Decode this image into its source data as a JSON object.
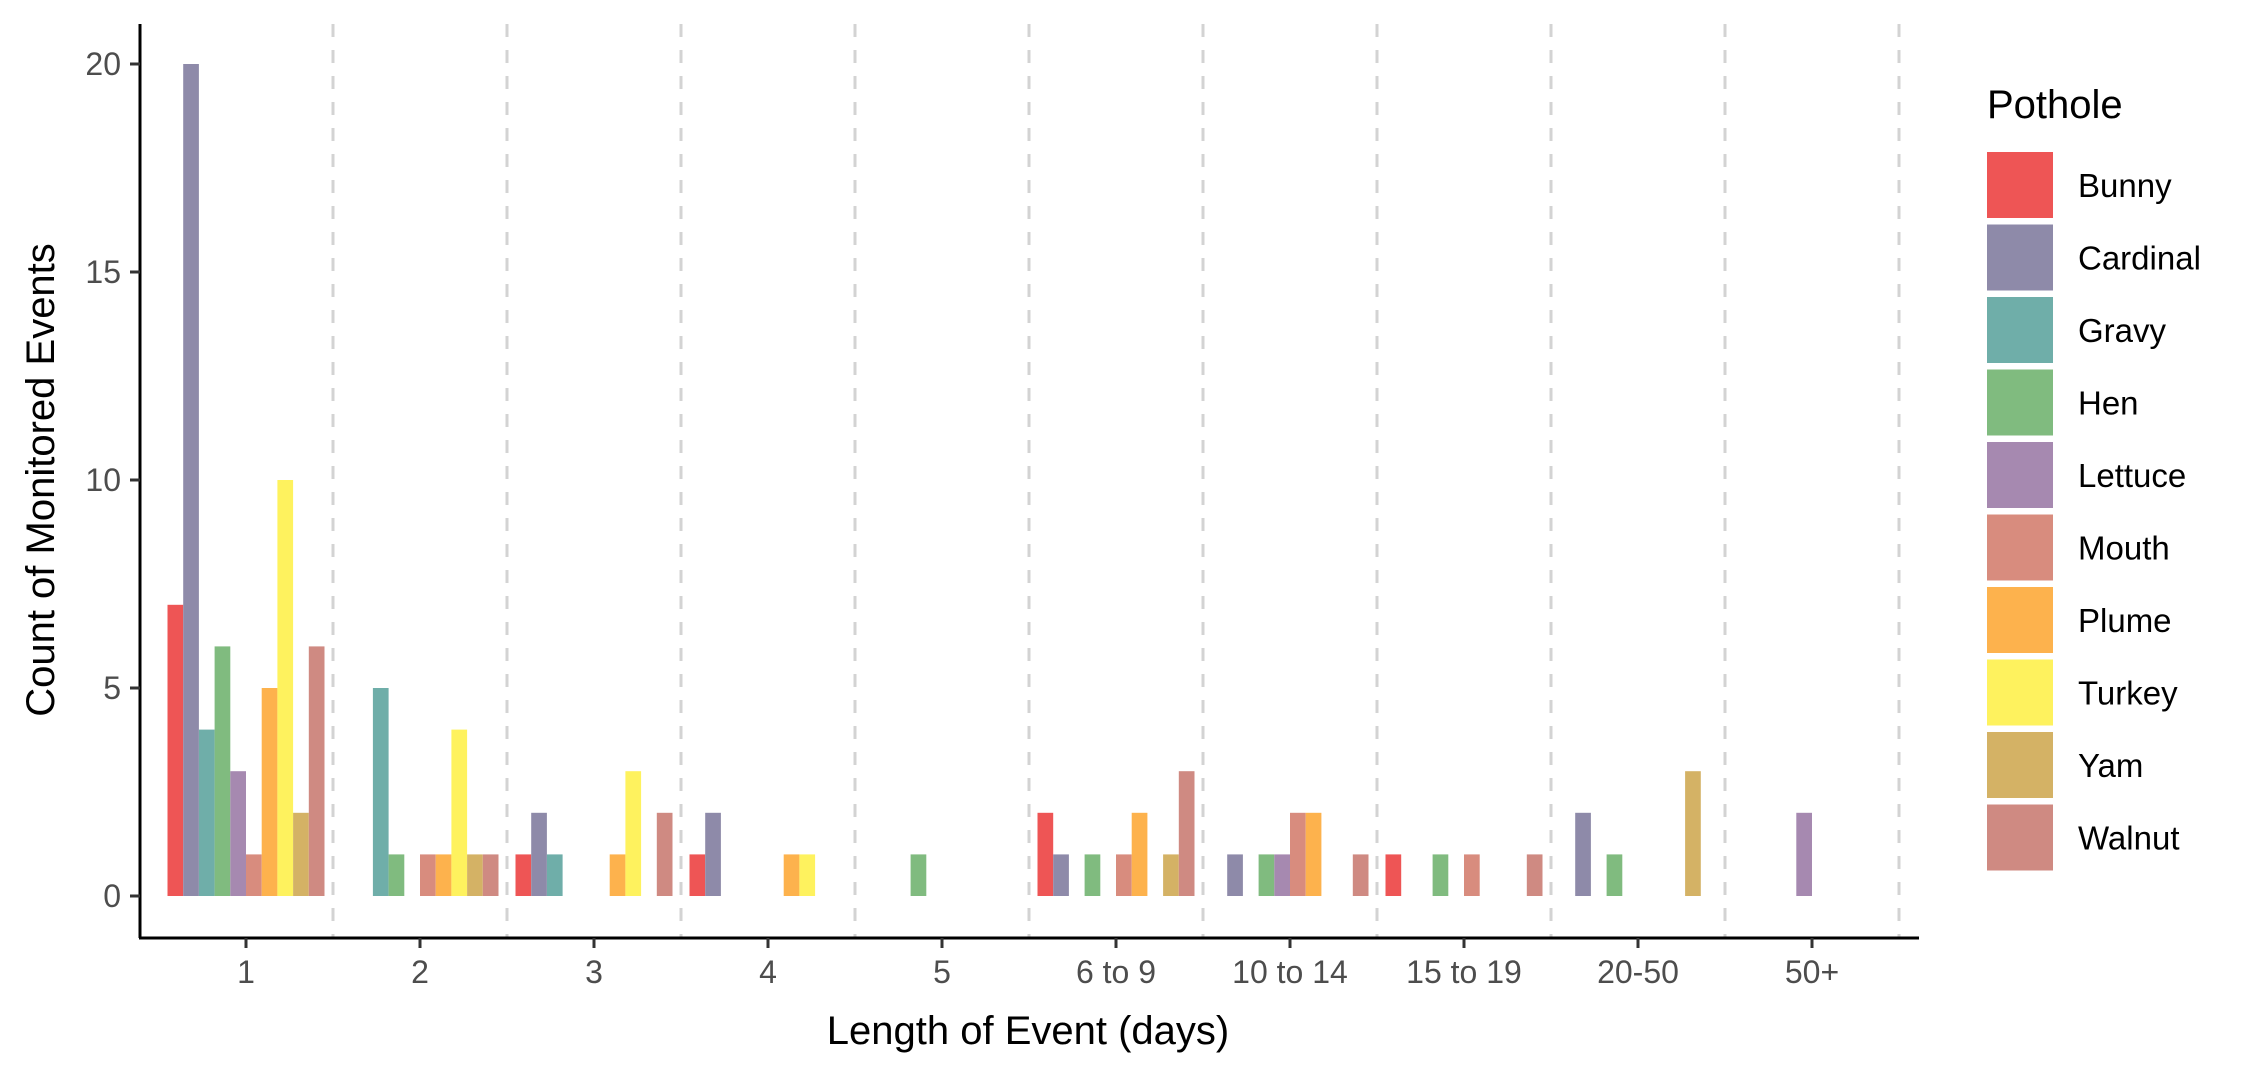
{
  "chart_data": {
    "type": "bar",
    "title": "",
    "xlabel": "Length of Event (days)",
    "ylabel": "Count of Monitored Events",
    "ylim": [
      0,
      21
    ],
    "yticks": [
      0,
      5,
      10,
      15,
      20
    ],
    "grid": "vertical dashed separators between categories",
    "legend_title": "Pothole",
    "legend_position": "right",
    "categories": [
      "1",
      "2",
      "3",
      "4",
      "5",
      "6 to 9",
      "10 to 14",
      "15 to 19",
      "20-50",
      "50+"
    ],
    "series": [
      {
        "name": "Bunny",
        "color": "#EE5555",
        "values": [
          7,
          0,
          1,
          1,
          0,
          2,
          0,
          1,
          0,
          0
        ]
      },
      {
        "name": "Cardinal",
        "color": "#8E8AA9",
        "values": [
          20,
          0,
          2,
          2,
          0,
          1,
          1,
          0,
          2,
          0
        ]
      },
      {
        "name": "Gravy",
        "color": "#6FAEA9",
        "values": [
          4,
          5,
          1,
          0,
          0,
          0,
          0,
          0,
          0,
          0
        ]
      },
      {
        "name": "Hen",
        "color": "#80BB7F",
        "values": [
          6,
          1,
          0,
          0,
          1,
          1,
          1,
          1,
          1,
          0
        ]
      },
      {
        "name": "Lettuce",
        "color": "#A689B0",
        "values": [
          3,
          0,
          0,
          0,
          0,
          0,
          1,
          0,
          0,
          2
        ]
      },
      {
        "name": "Mouth",
        "color": "#D88C7E",
        "values": [
          1,
          1,
          0,
          0,
          0,
          1,
          2,
          1,
          0,
          0
        ]
      },
      {
        "name": "Plume",
        "color": "#FDB24D",
        "values": [
          5,
          1,
          1,
          1,
          0,
          2,
          2,
          0,
          0,
          0
        ]
      },
      {
        "name": "Turkey",
        "color": "#FEF25E",
        "values": [
          10,
          4,
          3,
          1,
          0,
          0,
          0,
          0,
          0,
          0
        ]
      },
      {
        "name": "Yam",
        "color": "#D4B265",
        "values": [
          2,
          1,
          0,
          0,
          0,
          1,
          0,
          0,
          3,
          0
        ]
      },
      {
        "name": "Walnut",
        "color": "#CF8A82",
        "values": [
          6,
          1,
          2,
          0,
          0,
          3,
          1,
          1,
          0,
          0
        ]
      }
    ]
  }
}
